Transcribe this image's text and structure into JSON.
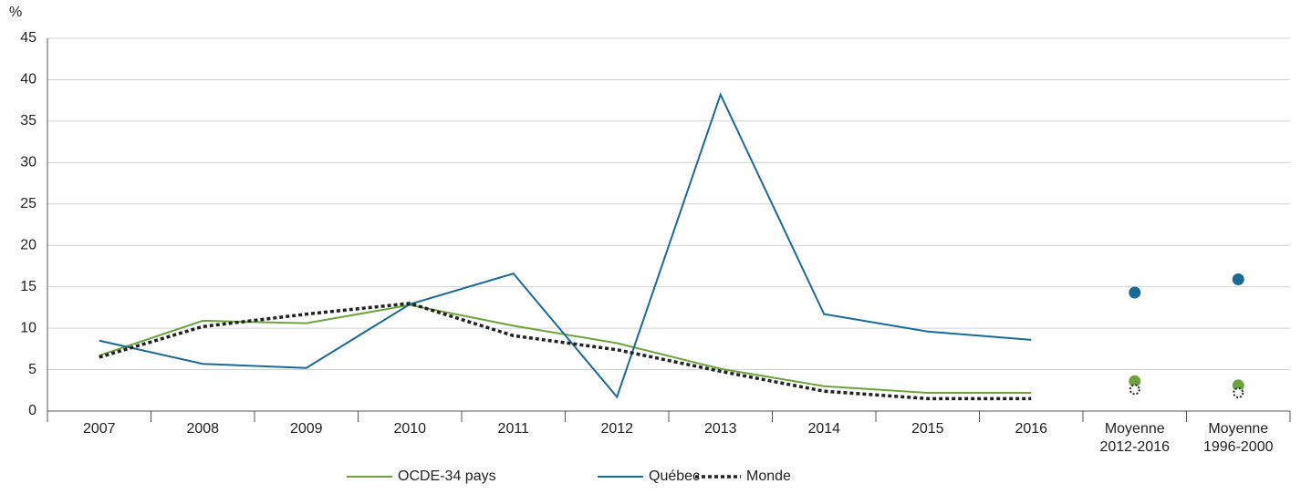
{
  "chart_data": {
    "type": "line",
    "y_label": "%",
    "categories": [
      "2007",
      "2008",
      "2009",
      "2010",
      "2011",
      "2012",
      "2013",
      "2014",
      "2015",
      "2016"
    ],
    "average_categories": [
      [
        "Moyenne",
        "2012-2016"
      ],
      [
        "Moyenne",
        "1996-2000"
      ]
    ],
    "series": [
      {
        "name": "OCDE-34 pays",
        "color": "#6ca33f",
        "values": [
          6.7,
          10.9,
          10.6,
          12.8,
          10.3,
          8.2,
          5.1,
          3.0,
          2.2,
          2.2
        ],
        "average_values": [
          3.6,
          3.1
        ]
      },
      {
        "name": "Québec",
        "color": "#1a6a93",
        "values": [
          8.5,
          5.7,
          5.2,
          12.9,
          16.6,
          1.7,
          38.2,
          11.7,
          9.6,
          8.6
        ],
        "average_values": [
          14.3,
          15.9
        ]
      },
      {
        "name": "Monde",
        "color": "#222222",
        "dashed": true,
        "values": [
          6.5,
          10.2,
          11.7,
          13.0,
          9.1,
          7.4,
          4.8,
          2.4,
          1.5,
          1.5
        ],
        "average_values": [
          2.6,
          2.2
        ]
      }
    ],
    "ylim": [
      0,
      45
    ],
    "yticks": [
      0,
      5,
      10,
      15,
      20,
      25,
      30,
      35,
      40,
      45
    ],
    "grid": true,
    "legend": "bottom"
  }
}
